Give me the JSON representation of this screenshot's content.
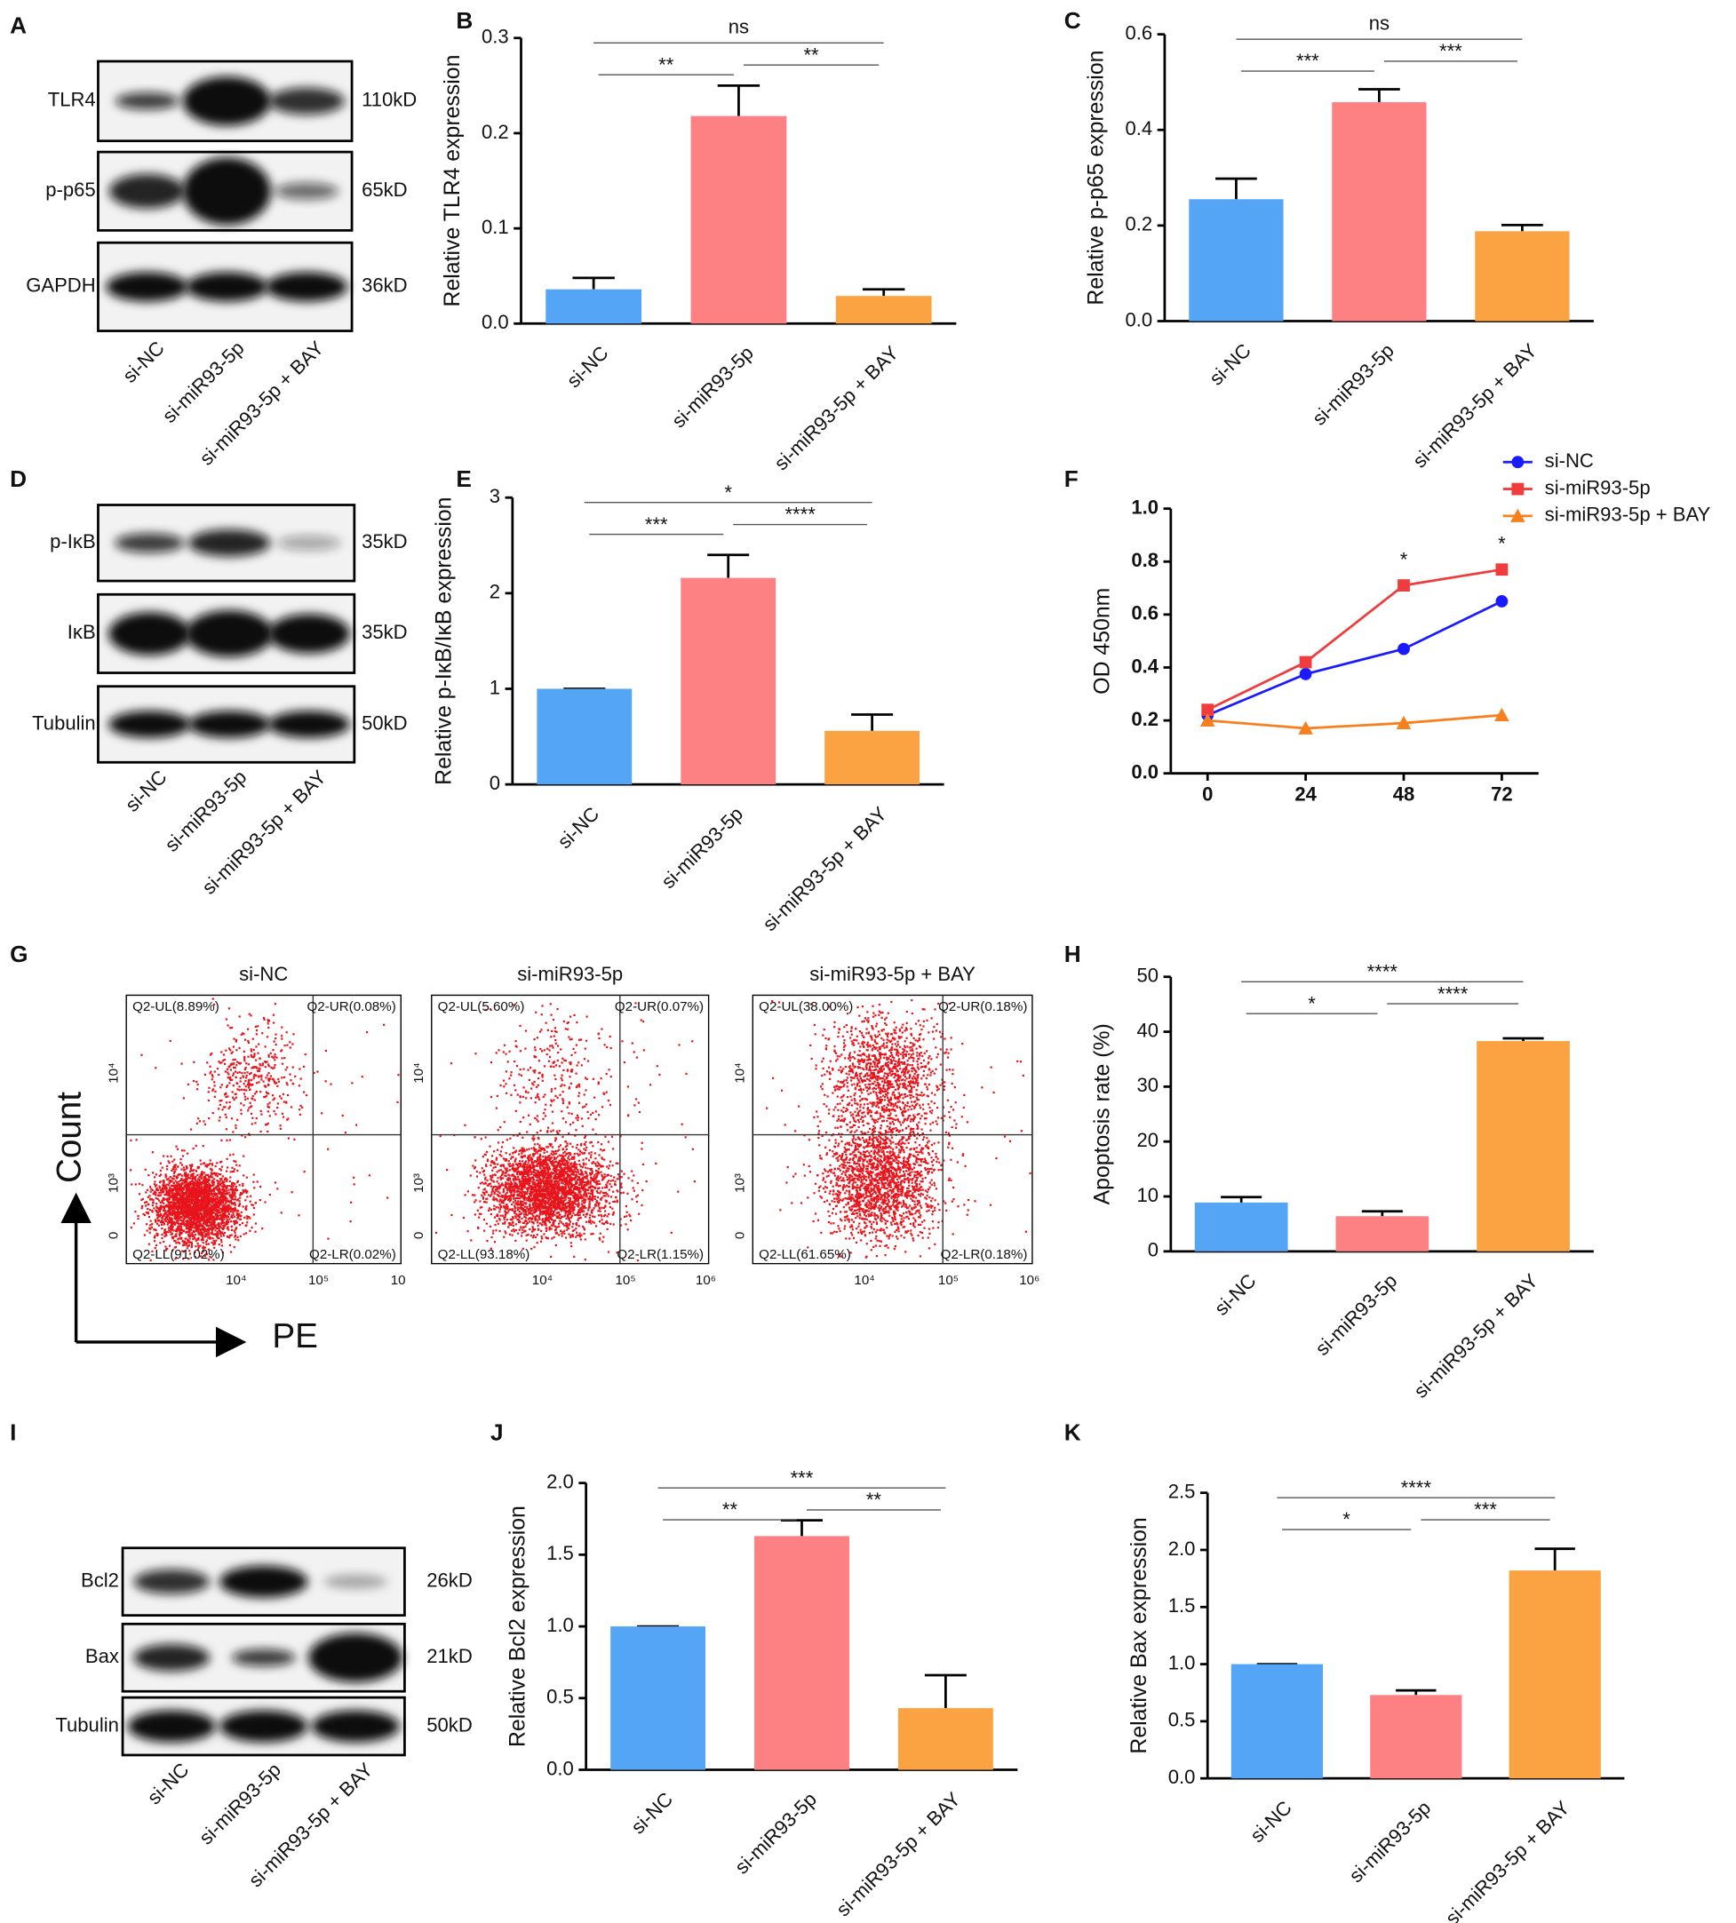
{
  "chart_data": [
    {
      "panel": "B",
      "type": "bar",
      "ylabel": "Relative TLR4 expression",
      "categories": [
        "si-NC",
        "si-miR93-5p",
        "si-miR93-5p + BAY"
      ],
      "values": [
        0.036,
        0.218,
        0.029
      ],
      "errors": [
        0.012,
        0.032,
        0.007
      ],
      "colors": [
        "#55a5f7",
        "#fd8083",
        "#fba343"
      ],
      "ylim": [
        0,
        0.3
      ],
      "yticks": [
        {
          "value": 0,
          "label": "0.0"
        },
        0.1,
        0.2,
        0.3
      ],
      "significance": [
        {
          "from": 0,
          "to": 2,
          "label": "ns"
        },
        {
          "from": 0,
          "to": 1,
          "label": "**"
        },
        {
          "from": 1,
          "to": 2,
          "label": "**"
        }
      ]
    },
    {
      "panel": "C",
      "type": "bar",
      "ylabel": "Relative p-p65 expression",
      "categories": [
        "si-NC",
        "si-miR93-5p",
        "si-miR93-5p + BAY"
      ],
      "values": [
        0.255,
        0.458,
        0.188
      ],
      "errors": [
        0.043,
        0.027,
        0.013
      ],
      "colors": [
        "#55a5f7",
        "#fd8083",
        "#fba343"
      ],
      "ylim": [
        0,
        0.6
      ],
      "yticks": [
        {
          "value": 0,
          "label": "0.0"
        },
        0.2,
        0.4,
        0.6
      ],
      "significance": [
        {
          "from": 0,
          "to": 2,
          "label": "ns"
        },
        {
          "from": 0,
          "to": 1,
          "label": "***"
        },
        {
          "from": 1,
          "to": 2,
          "label": "***"
        }
      ]
    },
    {
      "panel": "E",
      "type": "bar",
      "ylabel": "Relative p-IκB/IκB expression",
      "categories": [
        "si-NC",
        "si-miR93-5p",
        "si-miR93-5p + BAY"
      ],
      "values": [
        1.0,
        2.16,
        0.56
      ],
      "errors": [
        0,
        0.24,
        0.17
      ],
      "colors": [
        "#55a5f7",
        "#fd8083",
        "#fba343"
      ],
      "ylim": [
        0,
        3
      ],
      "yticks": [
        0,
        1,
        2,
        3
      ],
      "significance": [
        {
          "from": 0,
          "to": 2,
          "label": "*"
        },
        {
          "from": 0,
          "to": 1,
          "label": "***"
        },
        {
          "from": 1,
          "to": 2,
          "label": "****"
        }
      ]
    },
    {
      "panel": "F",
      "type": "line",
      "ylabel": "OD 450nm",
      "x": [
        0,
        24,
        48,
        72
      ],
      "xlim": [
        -9,
        81
      ],
      "xticks": [
        0,
        24,
        48,
        72
      ],
      "ylim": [
        0,
        1.0
      ],
      "yticks": [
        {
          "value": 0,
          "label": "0.0"
        },
        0.2,
        0.4,
        0.6,
        0.8,
        {
          "value": 1.0,
          "label": "1.0"
        }
      ],
      "legend": "top",
      "series": [
        {
          "name": "si-NC",
          "color": "#1a1aff",
          "marker": "circle",
          "values": [
            0.22,
            0.375,
            0.47,
            0.65
          ]
        },
        {
          "name": "si-miR93-5p",
          "color": "#f03c3c",
          "marker": "square",
          "values": [
            0.24,
            0.42,
            0.71,
            0.77
          ]
        },
        {
          "name": "si-miR93-5p +  BAY",
          "color": "#f77f1e",
          "marker": "triangle",
          "values": [
            0.2,
            0.17,
            0.19,
            0.22
          ]
        }
      ],
      "annotations": [
        {
          "x": 48,
          "y": 0.71,
          "text": "*"
        },
        {
          "x": 72,
          "y": 0.77,
          "text": "*"
        }
      ]
    },
    {
      "panel": "H",
      "type": "bar",
      "ylabel": "Apoptosis rate (%)",
      "categories": [
        "si-NC",
        "si-miR93-5p",
        "si-miR93-5p + BAY"
      ],
      "values": [
        8.89,
        6.4,
        38.3
      ],
      "errors": [
        1.0,
        0.9,
        0.5
      ],
      "colors": [
        "#55a5f7",
        "#fd8083",
        "#fba343"
      ],
      "ylim": [
        0,
        50
      ],
      "yticks": [
        0,
        10,
        20,
        30,
        40,
        50
      ],
      "significance": [
        {
          "from": 0,
          "to": 2,
          "label": "****"
        },
        {
          "from": 0,
          "to": 1,
          "label": "*"
        },
        {
          "from": 1,
          "to": 2,
          "label": "****"
        }
      ]
    },
    {
      "panel": "J",
      "type": "bar",
      "ylabel": "Relative Bcl2 expression",
      "categories": [
        "si-NC",
        "si-miR93-5p",
        "si-miR93-5p + BAY"
      ],
      "values": [
        1.0,
        1.63,
        0.43
      ],
      "errors": [
        0,
        0.11,
        0.23
      ],
      "colors": [
        "#55a5f7",
        "#fd8083",
        "#fba343"
      ],
      "ylim": [
        0,
        2.0
      ],
      "yticks": [
        {
          "value": 0,
          "label": "0.0"
        },
        0.5,
        {
          "value": 1.0,
          "label": "1.0"
        },
        1.5,
        {
          "value": 2.0,
          "label": "2.0"
        }
      ],
      "significance": [
        {
          "from": 0,
          "to": 2,
          "label": "***"
        },
        {
          "from": 0,
          "to": 1,
          "label": "**"
        },
        {
          "from": 1,
          "to": 2,
          "label": "**"
        }
      ]
    },
    {
      "panel": "K",
      "type": "bar",
      "ylabel": "Relative Bax expression",
      "categories": [
        "si-NC",
        "si-miR93-5p",
        "si-miR93-5p + BAY"
      ],
      "values": [
        1.0,
        0.73,
        1.82
      ],
      "errors": [
        0,
        0.04,
        0.19
      ],
      "colors": [
        "#55a5f7",
        "#fd8083",
        "#fba343"
      ],
      "ylim": [
        0,
        2.5
      ],
      "yticks": [
        {
          "value": 0,
          "label": "0.0"
        },
        0.5,
        {
          "value": 1.0,
          "label": "1.0"
        },
        1.5,
        {
          "value": 2.0,
          "label": "2.0"
        },
        2.5
      ],
      "significance": [
        {
          "from": 0,
          "to": 2,
          "label": "****"
        },
        {
          "from": 0,
          "to": 1,
          "label": "*"
        },
        {
          "from": 1,
          "to": 2,
          "label": "***"
        }
      ]
    }
  ],
  "blots": [
    {
      "panel": "A",
      "proteins": [
        "TLR4",
        "p-p65",
        "GAPDH"
      ],
      "sizes": [
        "110kD",
        "65kD",
        "36kD"
      ],
      "lanes": [
        "si-NC",
        "si-miR93-5p",
        "si-miR93-5p + BAY"
      ]
    },
    {
      "panel": "D",
      "proteins": [
        "p-IκB",
        "IκB",
        "Tubulin"
      ],
      "sizes": [
        "35kD",
        "35kD",
        "50kD"
      ],
      "lanes": [
        "si-NC",
        "si-miR93-5p",
        "si-miR93-5p + BAY"
      ]
    },
    {
      "panel": "I",
      "proteins": [
        "Bcl2",
        "Bax",
        "Tubulin"
      ],
      "sizes": [
        "26kD",
        "21kD",
        "50kD"
      ],
      "lanes": [
        "si-NC",
        "si-miR93-5p",
        "si-miR93-5p + BAY"
      ]
    }
  ],
  "flow": {
    "panel": "G",
    "ylabel": "Count",
    "xlabel": "PE",
    "yticks": [
      "0",
      "10³",
      "10⁴"
    ],
    "plots": [
      {
        "title": "si-NC",
        "quadrants": [
          "Q2-UL(8.89%)",
          "Q2-UR(0.08%)",
          "Q2-LL(91.02%)",
          "Q2-LR(0.02%)"
        ],
        "xticks": [
          "10⁴",
          "10⁵",
          "10"
        ]
      },
      {
        "title": "si-miR93-5p",
        "quadrants": [
          "Q2-UL(5.60%)",
          "Q2-UR(0.07%)",
          "Q2-LL(93.18%)",
          "Q2-LR(1.15%)"
        ],
        "xticks": [
          "10⁴",
          "10⁵",
          "10⁶"
        ]
      },
      {
        "title": "si-miR93-5p + BAY",
        "quadrants": [
          "Q2-UL(38.00%)",
          "Q2-UR(0.18%)",
          "Q2-LL(61.65%)",
          "Q2-LR(0.18%)"
        ],
        "xticks": [
          "10⁴",
          "10⁵",
          "10⁶"
        ]
      }
    ]
  }
}
